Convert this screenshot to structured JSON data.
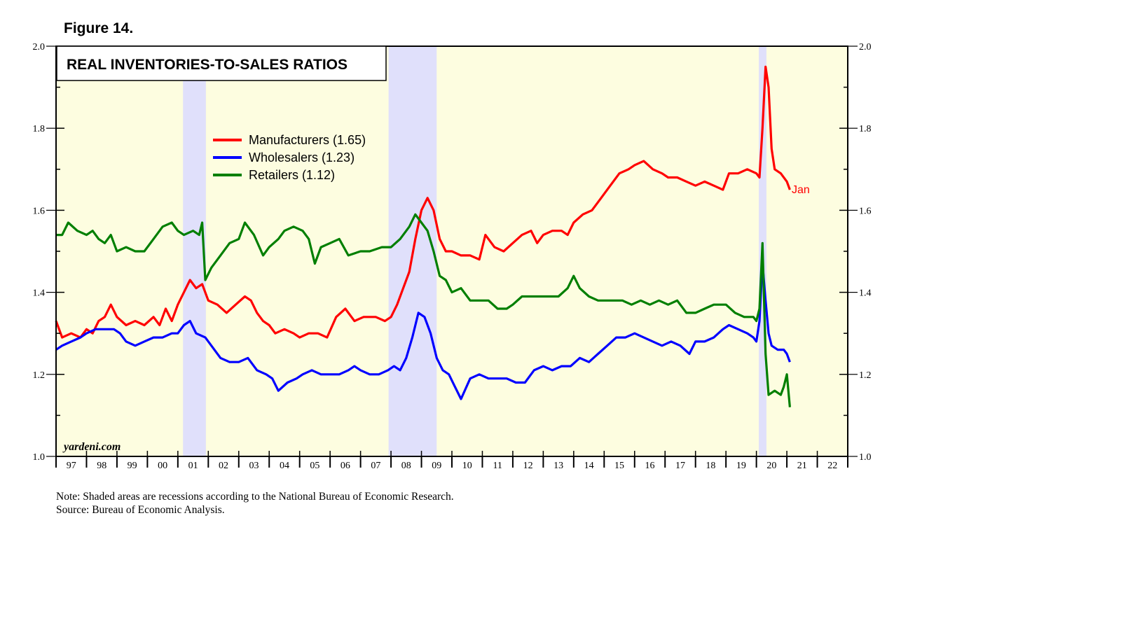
{
  "figure_label": "Figure 14.",
  "notes": {
    "note": "Note: Shaded areas are recessions according to the National Bureau of Economic Research.",
    "source": "Source: Bureau of Economic Analysis."
  },
  "colors": {
    "plot_background": "#fdfde0",
    "recession": "#e0e0fb",
    "manufacturers": "#ff0000",
    "wholesalers": "#0000ff",
    "retailers": "#007f00"
  },
  "chart_data": {
    "type": "line",
    "title": "REAL INVENTORIES-TO-SALES RATIOS",
    "watermark": "yardeni.com",
    "end_label": "Jan",
    "ylim": [
      1.0,
      2.0
    ],
    "xlim": [
      1997.0,
      2023.0
    ],
    "yticks": [
      "1.0",
      "1.2",
      "1.4",
      "1.6",
      "1.8",
      "2.0"
    ],
    "year_labels": [
      "97",
      "98",
      "99",
      "00",
      "01",
      "02",
      "03",
      "04",
      "05",
      "06",
      "07",
      "08",
      "09",
      "10",
      "11",
      "12",
      "13",
      "14",
      "15",
      "16",
      "17",
      "18",
      "19",
      "20",
      "21",
      "22"
    ],
    "recessions": [
      [
        2001.17,
        2001.92
      ],
      [
        2007.92,
        2009.5
      ],
      [
        2020.08,
        2020.33
      ]
    ],
    "legend_position": "upper-center",
    "series": [
      {
        "name": "Manufacturers",
        "legend": "Manufacturers (1.65)",
        "color": "#ff0000",
        "points": [
          [
            1997.0,
            1.33
          ],
          [
            1997.2,
            1.29
          ],
          [
            1997.5,
            1.3
          ],
          [
            1997.8,
            1.29
          ],
          [
            1998.0,
            1.31
          ],
          [
            1998.2,
            1.3
          ],
          [
            1998.4,
            1.33
          ],
          [
            1998.6,
            1.34
          ],
          [
            1998.8,
            1.37
          ],
          [
            1999.0,
            1.34
          ],
          [
            1999.3,
            1.32
          ],
          [
            1999.6,
            1.33
          ],
          [
            1999.9,
            1.32
          ],
          [
            2000.2,
            1.34
          ],
          [
            2000.4,
            1.32
          ],
          [
            2000.6,
            1.36
          ],
          [
            2000.8,
            1.33
          ],
          [
            2001.0,
            1.37
          ],
          [
            2001.2,
            1.4
          ],
          [
            2001.4,
            1.43
          ],
          [
            2001.6,
            1.41
          ],
          [
            2001.8,
            1.42
          ],
          [
            2002.0,
            1.38
          ],
          [
            2002.3,
            1.37
          ],
          [
            2002.6,
            1.35
          ],
          [
            2002.9,
            1.37
          ],
          [
            2003.2,
            1.39
          ],
          [
            2003.4,
            1.38
          ],
          [
            2003.6,
            1.35
          ],
          [
            2003.8,
            1.33
          ],
          [
            2004.0,
            1.32
          ],
          [
            2004.2,
            1.3
          ],
          [
            2004.5,
            1.31
          ],
          [
            2004.8,
            1.3
          ],
          [
            2005.0,
            1.29
          ],
          [
            2005.3,
            1.3
          ],
          [
            2005.6,
            1.3
          ],
          [
            2005.9,
            1.29
          ],
          [
            2006.2,
            1.34
          ],
          [
            2006.5,
            1.36
          ],
          [
            2006.8,
            1.33
          ],
          [
            2007.1,
            1.34
          ],
          [
            2007.5,
            1.34
          ],
          [
            2007.8,
            1.33
          ],
          [
            2008.0,
            1.34
          ],
          [
            2008.2,
            1.37
          ],
          [
            2008.4,
            1.41
          ],
          [
            2008.6,
            1.45
          ],
          [
            2008.8,
            1.53
          ],
          [
            2009.0,
            1.6
          ],
          [
            2009.2,
            1.63
          ],
          [
            2009.4,
            1.6
          ],
          [
            2009.6,
            1.53
          ],
          [
            2009.8,
            1.5
          ],
          [
            2010.0,
            1.5
          ],
          [
            2010.3,
            1.49
          ],
          [
            2010.6,
            1.49
          ],
          [
            2010.9,
            1.48
          ],
          [
            2011.1,
            1.54
          ],
          [
            2011.4,
            1.51
          ],
          [
            2011.7,
            1.5
          ],
          [
            2012.0,
            1.52
          ],
          [
            2012.3,
            1.54
          ],
          [
            2012.6,
            1.55
          ],
          [
            2012.8,
            1.52
          ],
          [
            2013.0,
            1.54
          ],
          [
            2013.3,
            1.55
          ],
          [
            2013.6,
            1.55
          ],
          [
            2013.8,
            1.54
          ],
          [
            2014.0,
            1.57
          ],
          [
            2014.3,
            1.59
          ],
          [
            2014.6,
            1.6
          ],
          [
            2014.9,
            1.63
          ],
          [
            2015.2,
            1.66
          ],
          [
            2015.5,
            1.69
          ],
          [
            2015.8,
            1.7
          ],
          [
            2016.0,
            1.71
          ],
          [
            2016.3,
            1.72
          ],
          [
            2016.6,
            1.7
          ],
          [
            2016.9,
            1.69
          ],
          [
            2017.1,
            1.68
          ],
          [
            2017.4,
            1.68
          ],
          [
            2017.7,
            1.67
          ],
          [
            2018.0,
            1.66
          ],
          [
            2018.3,
            1.67
          ],
          [
            2018.6,
            1.66
          ],
          [
            2018.9,
            1.65
          ],
          [
            2019.1,
            1.69
          ],
          [
            2019.4,
            1.69
          ],
          [
            2019.7,
            1.7
          ],
          [
            2020.0,
            1.69
          ],
          [
            2020.1,
            1.68
          ],
          [
            2020.2,
            1.8
          ],
          [
            2020.3,
            1.95
          ],
          [
            2020.4,
            1.9
          ],
          [
            2020.5,
            1.75
          ],
          [
            2020.6,
            1.7
          ],
          [
            2020.8,
            1.69
          ],
          [
            2021.0,
            1.67
          ],
          [
            2021.1,
            1.65
          ]
        ]
      },
      {
        "name": "Wholesalers",
        "legend": "Wholesalers (1.23)",
        "color": "#0000ff",
        "points": [
          [
            1997.0,
            1.26
          ],
          [
            1997.2,
            1.27
          ],
          [
            1997.5,
            1.28
          ],
          [
            1997.8,
            1.29
          ],
          [
            1998.0,
            1.3
          ],
          [
            1998.3,
            1.31
          ],
          [
            1998.6,
            1.31
          ],
          [
            1998.9,
            1.31
          ],
          [
            1999.1,
            1.3
          ],
          [
            1999.3,
            1.28
          ],
          [
            1999.6,
            1.27
          ],
          [
            1999.9,
            1.28
          ],
          [
            2000.2,
            1.29
          ],
          [
            2000.5,
            1.29
          ],
          [
            2000.8,
            1.3
          ],
          [
            2001.0,
            1.3
          ],
          [
            2001.2,
            1.32
          ],
          [
            2001.4,
            1.33
          ],
          [
            2001.6,
            1.3
          ],
          [
            2001.9,
            1.29
          ],
          [
            2002.1,
            1.27
          ],
          [
            2002.4,
            1.24
          ],
          [
            2002.7,
            1.23
          ],
          [
            2003.0,
            1.23
          ],
          [
            2003.3,
            1.24
          ],
          [
            2003.6,
            1.21
          ],
          [
            2003.9,
            1.2
          ],
          [
            2004.1,
            1.19
          ],
          [
            2004.3,
            1.16
          ],
          [
            2004.6,
            1.18
          ],
          [
            2004.9,
            1.19
          ],
          [
            2005.1,
            1.2
          ],
          [
            2005.4,
            1.21
          ],
          [
            2005.7,
            1.2
          ],
          [
            2006.0,
            1.2
          ],
          [
            2006.3,
            1.2
          ],
          [
            2006.6,
            1.21
          ],
          [
            2006.8,
            1.22
          ],
          [
            2007.0,
            1.21
          ],
          [
            2007.3,
            1.2
          ],
          [
            2007.6,
            1.2
          ],
          [
            2007.9,
            1.21
          ],
          [
            2008.1,
            1.22
          ],
          [
            2008.3,
            1.21
          ],
          [
            2008.5,
            1.24
          ],
          [
            2008.7,
            1.29
          ],
          [
            2008.9,
            1.35
          ],
          [
            2009.1,
            1.34
          ],
          [
            2009.3,
            1.3
          ],
          [
            2009.5,
            1.24
          ],
          [
            2009.7,
            1.21
          ],
          [
            2009.9,
            1.2
          ],
          [
            2010.1,
            1.17
          ],
          [
            2010.3,
            1.14
          ],
          [
            2010.6,
            1.19
          ],
          [
            2010.9,
            1.2
          ],
          [
            2011.2,
            1.19
          ],
          [
            2011.5,
            1.19
          ],
          [
            2011.8,
            1.19
          ],
          [
            2012.1,
            1.18
          ],
          [
            2012.4,
            1.18
          ],
          [
            2012.7,
            1.21
          ],
          [
            2013.0,
            1.22
          ],
          [
            2013.3,
            1.21
          ],
          [
            2013.6,
            1.22
          ],
          [
            2013.9,
            1.22
          ],
          [
            2014.2,
            1.24
          ],
          [
            2014.5,
            1.23
          ],
          [
            2014.8,
            1.25
          ],
          [
            2015.1,
            1.27
          ],
          [
            2015.4,
            1.29
          ],
          [
            2015.7,
            1.29
          ],
          [
            2016.0,
            1.3
          ],
          [
            2016.3,
            1.29
          ],
          [
            2016.6,
            1.28
          ],
          [
            2016.9,
            1.27
          ],
          [
            2017.2,
            1.28
          ],
          [
            2017.5,
            1.27
          ],
          [
            2017.8,
            1.25
          ],
          [
            2018.0,
            1.28
          ],
          [
            2018.3,
            1.28
          ],
          [
            2018.6,
            1.29
          ],
          [
            2018.9,
            1.31
          ],
          [
            2019.1,
            1.32
          ],
          [
            2019.4,
            1.31
          ],
          [
            2019.7,
            1.3
          ],
          [
            2019.9,
            1.29
          ],
          [
            2020.0,
            1.28
          ],
          [
            2020.1,
            1.33
          ],
          [
            2020.2,
            1.47
          ],
          [
            2020.3,
            1.38
          ],
          [
            2020.4,
            1.3
          ],
          [
            2020.5,
            1.27
          ],
          [
            2020.7,
            1.26
          ],
          [
            2020.9,
            1.26
          ],
          [
            2021.0,
            1.25
          ],
          [
            2021.1,
            1.23
          ]
        ]
      },
      {
        "name": "Retailers",
        "legend": "Retailers (1.12)",
        "color": "#007f00",
        "points": [
          [
            1997.0,
            1.54
          ],
          [
            1997.2,
            1.54
          ],
          [
            1997.4,
            1.57
          ],
          [
            1997.7,
            1.55
          ],
          [
            1998.0,
            1.54
          ],
          [
            1998.2,
            1.55
          ],
          [
            1998.4,
            1.53
          ],
          [
            1998.6,
            1.52
          ],
          [
            1998.8,
            1.54
          ],
          [
            1999.0,
            1.5
          ],
          [
            1999.3,
            1.51
          ],
          [
            1999.6,
            1.5
          ],
          [
            1999.9,
            1.5
          ],
          [
            2000.2,
            1.53
          ],
          [
            2000.5,
            1.56
          ],
          [
            2000.8,
            1.57
          ],
          [
            2001.0,
            1.55
          ],
          [
            2001.2,
            1.54
          ],
          [
            2001.5,
            1.55
          ],
          [
            2001.7,
            1.54
          ],
          [
            2001.8,
            1.57
          ],
          [
            2001.9,
            1.43
          ],
          [
            2002.1,
            1.46
          ],
          [
            2002.4,
            1.49
          ],
          [
            2002.7,
            1.52
          ],
          [
            2003.0,
            1.53
          ],
          [
            2003.2,
            1.57
          ],
          [
            2003.5,
            1.54
          ],
          [
            2003.8,
            1.49
          ],
          [
            2004.0,
            1.51
          ],
          [
            2004.3,
            1.53
          ],
          [
            2004.5,
            1.55
          ],
          [
            2004.8,
            1.56
          ],
          [
            2005.1,
            1.55
          ],
          [
            2005.3,
            1.53
          ],
          [
            2005.5,
            1.47
          ],
          [
            2005.7,
            1.51
          ],
          [
            2006.0,
            1.52
          ],
          [
            2006.3,
            1.53
          ],
          [
            2006.6,
            1.49
          ],
          [
            2007.0,
            1.5
          ],
          [
            2007.3,
            1.5
          ],
          [
            2007.7,
            1.51
          ],
          [
            2008.0,
            1.51
          ],
          [
            2008.3,
            1.53
          ],
          [
            2008.6,
            1.56
          ],
          [
            2008.8,
            1.59
          ],
          [
            2009.0,
            1.57
          ],
          [
            2009.2,
            1.55
          ],
          [
            2009.4,
            1.5
          ],
          [
            2009.6,
            1.44
          ],
          [
            2009.8,
            1.43
          ],
          [
            2010.0,
            1.4
          ],
          [
            2010.3,
            1.41
          ],
          [
            2010.6,
            1.38
          ],
          [
            2010.9,
            1.38
          ],
          [
            2011.2,
            1.38
          ],
          [
            2011.5,
            1.36
          ],
          [
            2011.8,
            1.36
          ],
          [
            2012.0,
            1.37
          ],
          [
            2012.3,
            1.39
          ],
          [
            2012.6,
            1.39
          ],
          [
            2012.9,
            1.39
          ],
          [
            2013.2,
            1.39
          ],
          [
            2013.5,
            1.39
          ],
          [
            2013.8,
            1.41
          ],
          [
            2014.0,
            1.44
          ],
          [
            2014.2,
            1.41
          ],
          [
            2014.5,
            1.39
          ],
          [
            2014.8,
            1.38
          ],
          [
            2015.0,
            1.38
          ],
          [
            2015.3,
            1.38
          ],
          [
            2015.6,
            1.38
          ],
          [
            2015.9,
            1.37
          ],
          [
            2016.2,
            1.38
          ],
          [
            2016.5,
            1.37
          ],
          [
            2016.8,
            1.38
          ],
          [
            2017.1,
            1.37
          ],
          [
            2017.4,
            1.38
          ],
          [
            2017.7,
            1.35
          ],
          [
            2018.0,
            1.35
          ],
          [
            2018.3,
            1.36
          ],
          [
            2018.6,
            1.37
          ],
          [
            2018.8,
            1.37
          ],
          [
            2019.0,
            1.37
          ],
          [
            2019.3,
            1.35
          ],
          [
            2019.6,
            1.34
          ],
          [
            2019.9,
            1.34
          ],
          [
            2020.0,
            1.33
          ],
          [
            2020.1,
            1.36
          ],
          [
            2020.2,
            1.52
          ],
          [
            2020.3,
            1.25
          ],
          [
            2020.4,
            1.15
          ],
          [
            2020.6,
            1.16
          ],
          [
            2020.8,
            1.15
          ],
          [
            2020.9,
            1.17
          ],
          [
            2021.0,
            1.2
          ],
          [
            2021.1,
            1.12
          ]
        ]
      }
    ]
  }
}
